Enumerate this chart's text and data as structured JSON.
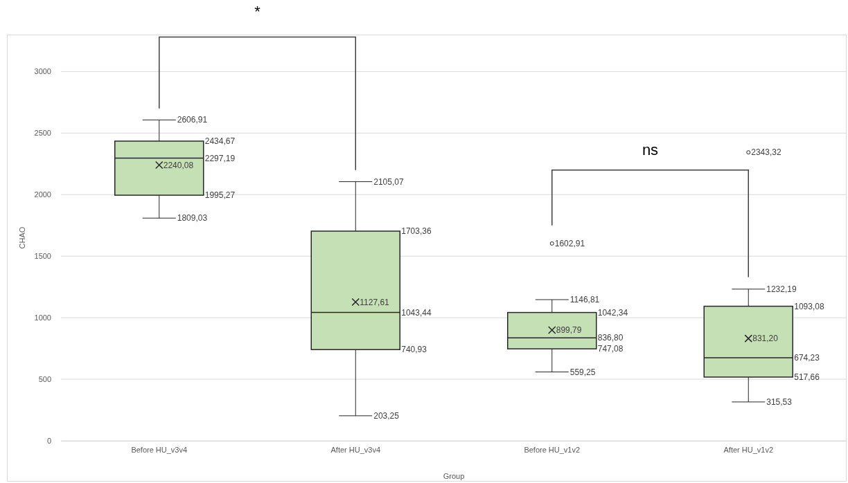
{
  "chart_data": {
    "type": "box",
    "xlabel": "Group",
    "ylabel": "CHAO",
    "categories": [
      "Before HU_v3v4",
      "After HU_v3v4",
      "Before HU_v1v2",
      "After HU_v1v2"
    ],
    "boxes": [
      {
        "low": 1809.03,
        "q1": 1995.27,
        "median": 2297.19,
        "q3": 2434.67,
        "high": 2606.91,
        "mean": 2240.08
      },
      {
        "low": 203.25,
        "q1": 740.93,
        "median": 1043.44,
        "q3": 1703.36,
        "high": 2105.07,
        "mean": 1127.61
      },
      {
        "low": 559.25,
        "q1": 747.08,
        "median": 836.8,
        "q3": 1042.34,
        "high": 1146.81,
        "mean": 899.79,
        "outliers": [
          1602.91
        ]
      },
      {
        "low": 315.53,
        "q1": 517.66,
        "median": 674.23,
        "q3": 1093.08,
        "high": 1232.19,
        "mean": 831.2,
        "outliers": [
          2343.32
        ]
      }
    ],
    "color": "#c5e0b4",
    "ylim": [
      0,
      3300
    ],
    "yticks": [
      0,
      500,
      1000,
      1500,
      2000,
      2500,
      3000
    ],
    "grid": "y",
    "value_labels": [
      {
        "low": "1809,03",
        "q1": "1995,27",
        "median": "2297,19",
        "q3": "2434,67",
        "high": "2606,91",
        "mean": "2240,08"
      },
      {
        "low": "203,25",
        "q1": "740,93",
        "median": "1043,44",
        "q3": "1703,36",
        "high": "2105,07",
        "mean": "1127,61"
      },
      {
        "low": "559,25",
        "q1": "747,08",
        "median": "836,80",
        "q3": "1042,34",
        "high": "1146,81",
        "mean": "899,79",
        "outliers": [
          "1602,91"
        ]
      },
      {
        "low": "315,53",
        "q1": "517,66",
        "median": "674,23",
        "q3": "1093,08",
        "high": "1232,19",
        "mean": "831,20",
        "outliers": [
          "2343,32"
        ]
      }
    ],
    "annotations": [
      "*",
      "ns"
    ]
  }
}
